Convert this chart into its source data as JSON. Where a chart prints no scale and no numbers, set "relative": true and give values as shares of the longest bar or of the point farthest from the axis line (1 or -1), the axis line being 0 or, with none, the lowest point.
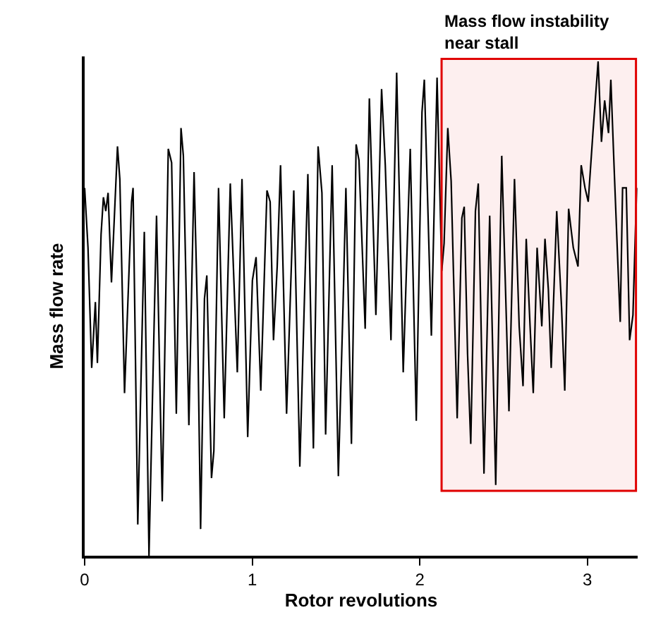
{
  "chart_data": {
    "type": "line",
    "relative": true,
    "xlabel": "Rotor revolutions",
    "ylabel": "Mass flow rate",
    "xlim": [
      0,
      3.3
    ],
    "xticks": [
      0,
      1,
      2,
      3
    ],
    "marker": "none",
    "line_style": "solid",
    "x": [
      0.0,
      0.02,
      0.042,
      0.064,
      0.076,
      0.098,
      0.112,
      0.126,
      0.14,
      0.16,
      0.196,
      0.21,
      0.238,
      0.28,
      0.289,
      0.317,
      0.356,
      0.384,
      0.429,
      0.463,
      0.499,
      0.519,
      0.547,
      0.575,
      0.589,
      0.622,
      0.653,
      0.673,
      0.692,
      0.715,
      0.729,
      0.757,
      0.771,
      0.799,
      0.833,
      0.869,
      0.911,
      0.939,
      0.973,
      1.001,
      1.023,
      1.051,
      1.088,
      1.107,
      1.127,
      1.149,
      1.169,
      1.205,
      1.248,
      1.284,
      1.332,
      1.365,
      1.393,
      1.416,
      1.438,
      1.477,
      1.514,
      1.542,
      1.559,
      1.592,
      1.62,
      1.637,
      1.674,
      1.699,
      1.738,
      1.772,
      1.794,
      1.828,
      1.862,
      1.901,
      1.943,
      1.979,
      2.013,
      2.027,
      2.069,
      2.103,
      2.131,
      2.145,
      2.167,
      2.187,
      2.223,
      2.251,
      2.265,
      2.285,
      2.304,
      2.332,
      2.349,
      2.383,
      2.417,
      2.453,
      2.489,
      2.532,
      2.565,
      2.593,
      2.616,
      2.635,
      2.658,
      2.677,
      2.7,
      2.728,
      2.747,
      2.767,
      2.784,
      2.817,
      2.846,
      2.865,
      2.888,
      2.916,
      2.944,
      2.963,
      2.986,
      3.005,
      3.033,
      3.064,
      3.084,
      3.103,
      3.126,
      3.14,
      3.16,
      3.182,
      3.196,
      3.21,
      3.232,
      3.252,
      3.272,
      3.294
    ],
    "series": [
      {
        "color": "#000000",
        "values": [
          0.744,
          0.623,
          0.38,
          0.513,
          0.39,
          0.65,
          0.725,
          0.697,
          0.734,
          0.553,
          0.828,
          0.762,
          0.329,
          0.716,
          0.744,
          0.063,
          0.655,
          0.0,
          0.688,
          0.11,
          0.823,
          0.795,
          0.287,
          0.865,
          0.809,
          0.264,
          0.776,
          0.492,
          0.054,
          0.52,
          0.567,
          0.157,
          0.212,
          0.744,
          0.278,
          0.753,
          0.371,
          0.762,
          0.24,
          0.557,
          0.604,
          0.334,
          0.739,
          0.716,
          0.436,
          0.585,
          0.79,
          0.287,
          0.739,
          0.18,
          0.772,
          0.217,
          0.828,
          0.734,
          0.245,
          0.79,
          0.161,
          0.506,
          0.744,
          0.226,
          0.832,
          0.8,
          0.459,
          0.925,
          0.487,
          0.944,
          0.79,
          0.436,
          0.977,
          0.371,
          0.823,
          0.273,
          0.897,
          0.963,
          0.445,
          0.967,
          0.576,
          0.632,
          0.865,
          0.758,
          0.278,
          0.683,
          0.706,
          0.408,
          0.226,
          0.697,
          0.753,
          0.166,
          0.688,
          0.143,
          0.809,
          0.292,
          0.762,
          0.464,
          0.343,
          0.641,
          0.464,
          0.329,
          0.623,
          0.464,
          0.641,
          0.539,
          0.38,
          0.697,
          0.501,
          0.334,
          0.702,
          0.623,
          0.585,
          0.79,
          0.744,
          0.716,
          0.855,
          1.0,
          0.837,
          0.921,
          0.855,
          0.963,
          0.781,
          0.59,
          0.473,
          0.744,
          0.744,
          0.436,
          0.487,
          0.744
        ]
      }
    ],
    "bands": [
      {
        "axis": "x",
        "from": 2.13,
        "to": 3.29,
        "label": "Mass flow instability\nnear stall",
        "color": "#e00000"
      }
    ]
  }
}
